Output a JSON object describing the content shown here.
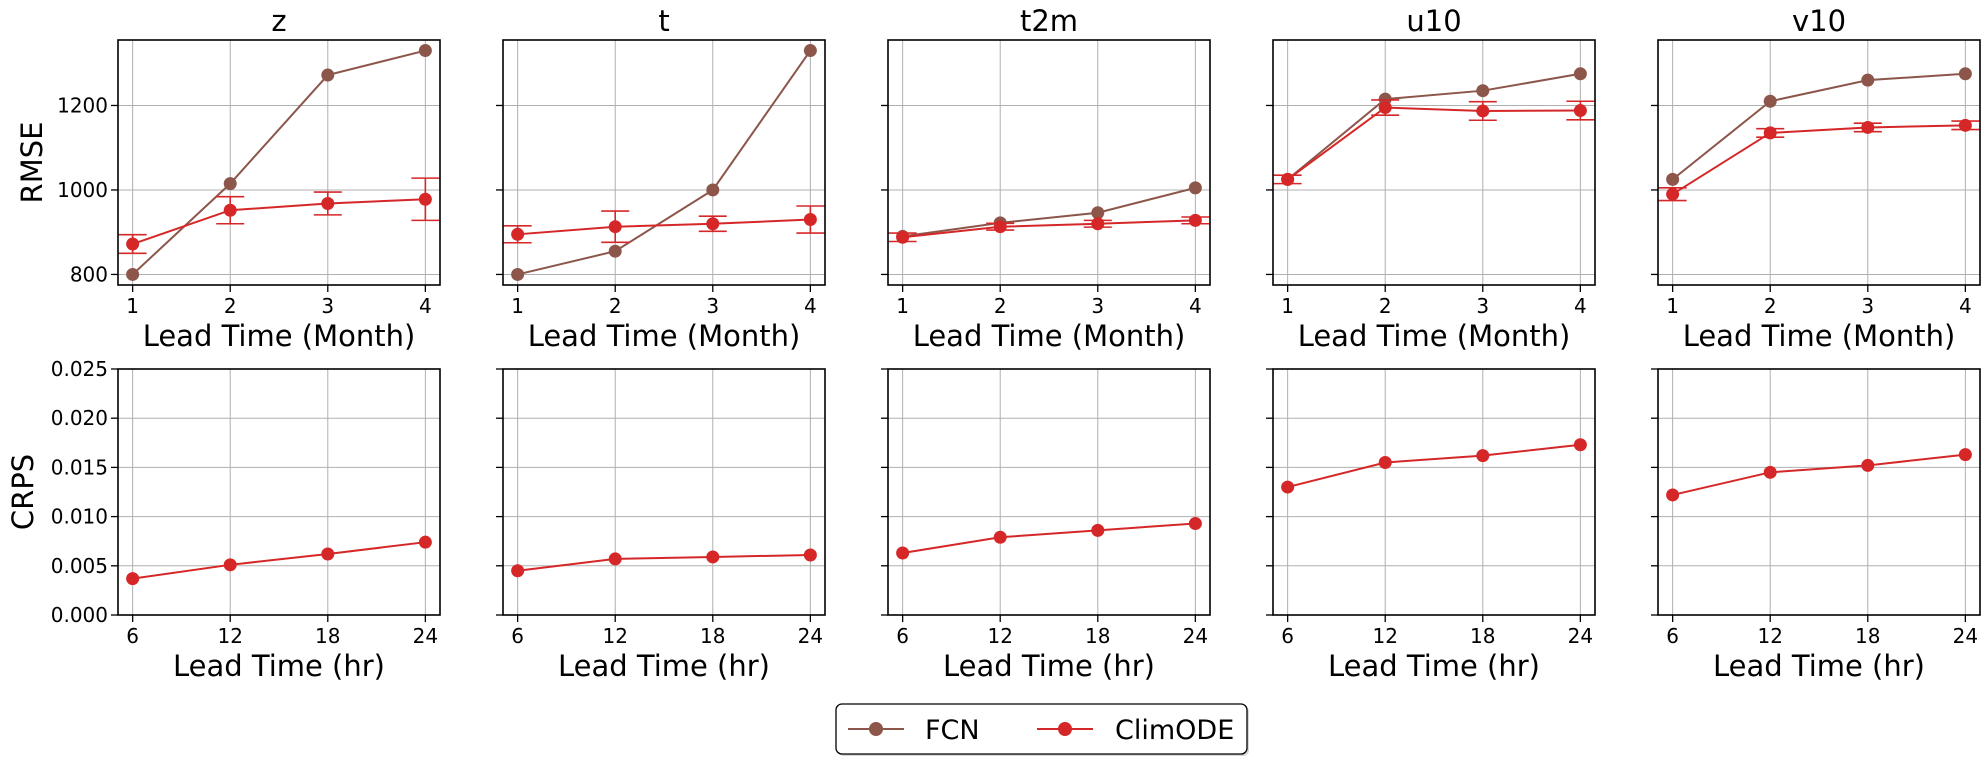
{
  "colors": {
    "FCN": "#8c564b",
    "ClimODE": "#d62728"
  },
  "legend": {
    "items": [
      "FCN",
      "ClimODE"
    ]
  },
  "chart_data": [
    {
      "type": "line",
      "row": "RMSE",
      "title": "z",
      "xlabel": "Lead Time (Month)",
      "ylabel": "RMSE",
      "x": [
        1,
        2,
        3,
        4
      ],
      "xlim": [
        0.85,
        4.15
      ],
      "ylim": [
        775,
        1355
      ],
      "yticks": [
        800,
        1000,
        1200
      ],
      "ytick_labels": [
        "800",
        "1000",
        "1200"
      ],
      "series": [
        {
          "name": "FCN",
          "values": [
            800,
            1015,
            1272,
            1330
          ]
        },
        {
          "name": "ClimODE",
          "values": [
            872,
            952,
            968,
            978
          ],
          "err": [
            22,
            32,
            27,
            50
          ]
        }
      ]
    },
    {
      "type": "line",
      "row": "RMSE",
      "title": "t",
      "xlabel": "Lead Time (Month)",
      "ylabel": "",
      "x": [
        1,
        2,
        3,
        4
      ],
      "xlim": [
        0.85,
        4.15
      ],
      "ylim": [
        775,
        1355
      ],
      "yticks": [
        800,
        1000,
        1200
      ],
      "ytick_labels": [
        "",
        "",
        ""
      ],
      "series": [
        {
          "name": "FCN",
          "values": [
            800,
            855,
            1000,
            1330
          ]
        },
        {
          "name": "ClimODE",
          "values": [
            895,
            913,
            920,
            930
          ],
          "err": [
            20,
            37,
            18,
            32
          ]
        }
      ]
    },
    {
      "type": "line",
      "row": "RMSE",
      "title": "t2m",
      "xlabel": "Lead Time (Month)",
      "ylabel": "",
      "x": [
        1,
        2,
        3,
        4
      ],
      "xlim": [
        0.85,
        4.15
      ],
      "ylim": [
        775,
        1355
      ],
      "yticks": [
        800,
        1000,
        1200
      ],
      "ytick_labels": [
        "",
        "",
        ""
      ],
      "series": [
        {
          "name": "FCN",
          "values": [
            890,
            922,
            946,
            1005
          ]
        },
        {
          "name": "ClimODE",
          "values": [
            888,
            913,
            920,
            928
          ],
          "err": [
            10,
            8,
            8,
            8
          ]
        }
      ]
    },
    {
      "type": "line",
      "row": "RMSE",
      "title": "u10",
      "xlabel": "Lead Time (Month)",
      "ylabel": "",
      "x": [
        1,
        2,
        3,
        4
      ],
      "xlim": [
        0.85,
        4.15
      ],
      "ylim": [
        775,
        1355
      ],
      "yticks": [
        800,
        1000,
        1200
      ],
      "ytick_labels": [
        "",
        "",
        ""
      ],
      "series": [
        {
          "name": "FCN",
          "values": [
            1025,
            1215,
            1235,
            1275
          ]
        },
        {
          "name": "ClimODE",
          "values": [
            1025,
            1195,
            1187,
            1188
          ],
          "err": [
            10,
            18,
            22,
            22
          ]
        }
      ]
    },
    {
      "type": "line",
      "row": "RMSE",
      "title": "v10",
      "xlabel": "Lead Time (Month)",
      "ylabel": "",
      "x": [
        1,
        2,
        3,
        4
      ],
      "xlim": [
        0.85,
        4.15
      ],
      "ylim": [
        775,
        1355
      ],
      "yticks": [
        800,
        1000,
        1200
      ],
      "ytick_labels": [
        "",
        "",
        ""
      ],
      "series": [
        {
          "name": "FCN",
          "values": [
            1025,
            1210,
            1260,
            1275
          ]
        },
        {
          "name": "ClimODE",
          "values": [
            990,
            1135,
            1148,
            1153
          ],
          "err": [
            15,
            10,
            10,
            10
          ]
        }
      ]
    },
    {
      "type": "line",
      "row": "CRPS",
      "title": "",
      "xlabel": "Lead Time (hr)",
      "ylabel": "CRPS",
      "x": [
        6,
        12,
        18,
        24
      ],
      "xlim": [
        5.1,
        24.9
      ],
      "ylim": [
        0,
        0.025
      ],
      "yticks": [
        0,
        0.005,
        0.01,
        0.015,
        0.02,
        0.025
      ],
      "ytick_labels": [
        "0.000",
        "0.005",
        "0.010",
        "0.015",
        "0.020",
        "0.025"
      ],
      "series": [
        {
          "name": "ClimODE",
          "values": [
            0.0037,
            0.0051,
            0.0062,
            0.0074
          ]
        }
      ]
    },
    {
      "type": "line",
      "row": "CRPS",
      "title": "",
      "xlabel": "Lead Time (hr)",
      "ylabel": "",
      "x": [
        6,
        12,
        18,
        24
      ],
      "xlim": [
        5.1,
        24.9
      ],
      "ylim": [
        0,
        0.025
      ],
      "yticks": [
        0,
        0.005,
        0.01,
        0.015,
        0.02,
        0.025
      ],
      "ytick_labels": [
        "",
        "",
        "",
        "",
        "",
        ""
      ],
      "series": [
        {
          "name": "ClimODE",
          "values": [
            0.0045,
            0.0057,
            0.0059,
            0.0061
          ]
        }
      ]
    },
    {
      "type": "line",
      "row": "CRPS",
      "title": "",
      "xlabel": "Lead Time (hr)",
      "ylabel": "",
      "x": [
        6,
        12,
        18,
        24
      ],
      "xlim": [
        5.1,
        24.9
      ],
      "ylim": [
        0,
        0.025
      ],
      "yticks": [
        0,
        0.005,
        0.01,
        0.015,
        0.02,
        0.025
      ],
      "ytick_labels": [
        "",
        "",
        "",
        "",
        "",
        ""
      ],
      "series": [
        {
          "name": "ClimODE",
          "values": [
            0.0063,
            0.0079,
            0.0086,
            0.0093
          ]
        }
      ]
    },
    {
      "type": "line",
      "row": "CRPS",
      "title": "",
      "xlabel": "Lead Time (hr)",
      "ylabel": "",
      "x": [
        6,
        12,
        18,
        24
      ],
      "xlim": [
        5.1,
        24.9
      ],
      "ylim": [
        0,
        0.025
      ],
      "yticks": [
        0,
        0.005,
        0.01,
        0.015,
        0.02,
        0.025
      ],
      "ytick_labels": [
        "",
        "",
        "",
        "",
        "",
        ""
      ],
      "series": [
        {
          "name": "ClimODE",
          "values": [
            0.013,
            0.0155,
            0.0162,
            0.0173
          ]
        }
      ]
    },
    {
      "type": "line",
      "row": "CRPS",
      "title": "",
      "xlabel": "Lead Time (hr)",
      "ylabel": "",
      "x": [
        6,
        12,
        18,
        24
      ],
      "xlim": [
        5.1,
        24.9
      ],
      "ylim": [
        0,
        0.025
      ],
      "yticks": [
        0,
        0.005,
        0.01,
        0.015,
        0.02,
        0.025
      ],
      "ytick_labels": [
        "",
        "",
        "",
        "",
        "",
        ""
      ],
      "series": [
        {
          "name": "ClimODE",
          "values": [
            0.0122,
            0.0145,
            0.0152,
            0.0163
          ]
        }
      ]
    }
  ]
}
